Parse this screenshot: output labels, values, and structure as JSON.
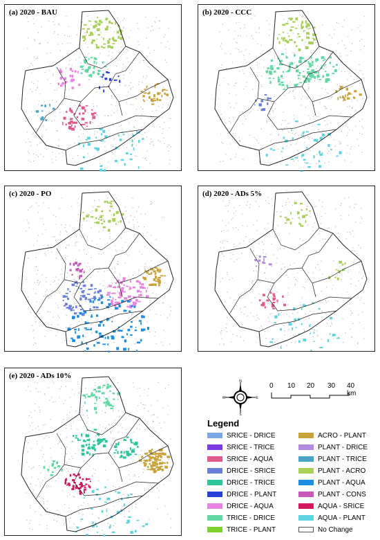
{
  "panels": [
    {
      "title": "(a) 2020 - BAU"
    },
    {
      "title": "(b) 2020 - CCC"
    },
    {
      "title": "(c) 2020 - PO"
    },
    {
      "title": "(d) 2020 - ADs 5%"
    },
    {
      "title": "(e) 2020 - ADs 10%"
    }
  ],
  "compass": {
    "n": "N",
    "s": "S",
    "e": "E",
    "w": "W"
  },
  "scale": {
    "ticks": [
      "0",
      "10",
      "20",
      "30",
      "40 km"
    ]
  },
  "legend": {
    "title": "Legend",
    "items": [
      {
        "label": "SRICE - DRICE",
        "color": "#7aa6e8"
      },
      {
        "label": "SRICE - TRICE",
        "color": "#7b3be0"
      },
      {
        "label": "SRICE - AQUA",
        "color": "#e05a8a"
      },
      {
        "label": "DRICE - SRICE",
        "color": "#6a80d8"
      },
      {
        "label": "DRICE - TRICE",
        "color": "#2fc59a"
      },
      {
        "label": "DRICE - PLANT",
        "color": "#2a3fd6"
      },
      {
        "label": "DRICE - AQUA",
        "color": "#e884e0"
      },
      {
        "label": "TRICE - DRICE",
        "color": "#62d9a4"
      },
      {
        "label": "TRICE - PLANT",
        "color": "#7fd12e"
      },
      {
        "label": "ACRO - PLANT",
        "color": "#c8a23a"
      },
      {
        "label": "PLANT - DRICE",
        "color": "#b18be0"
      },
      {
        "label": "PLANT - TRICE",
        "color": "#4aa3c9"
      },
      {
        "label": "PLANT - ACRO",
        "color": "#a9d05a"
      },
      {
        "label": "PLANT - AQUA",
        "color": "#1e8ce0"
      },
      {
        "label": "PLANT - CONS",
        "color": "#c659b8"
      },
      {
        "label": "AQUA - SRICE",
        "color": "#d1175e"
      },
      {
        "label": "AQUA - PLANT",
        "color": "#5fd3e0"
      },
      {
        "label": "No Change",
        "color": "#ffffff"
      }
    ]
  }
}
